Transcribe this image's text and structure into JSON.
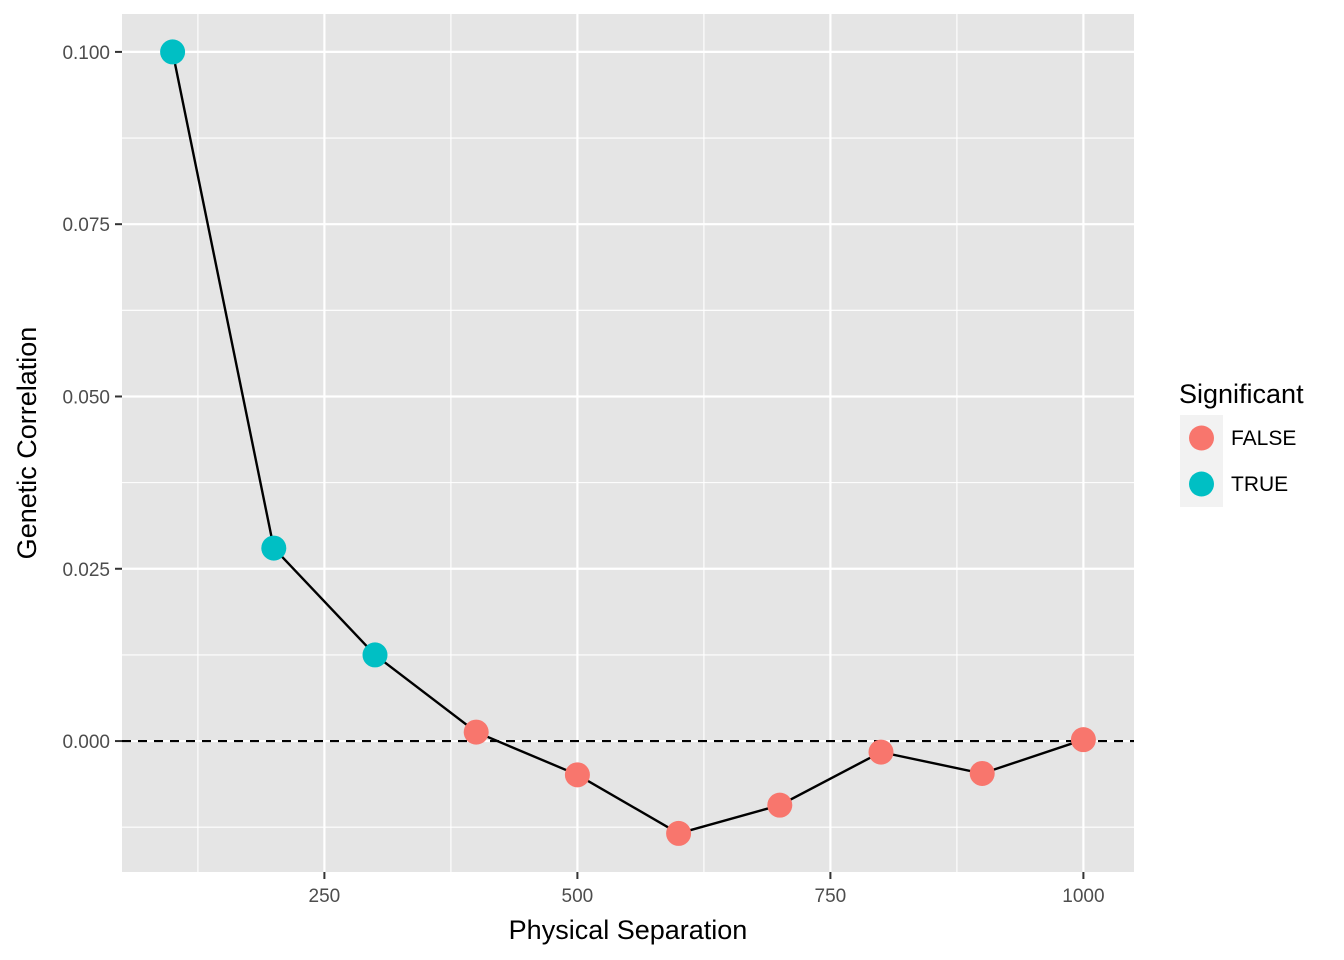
{
  "chart_data": {
    "type": "line",
    "xlabel": "Physical Separation",
    "ylabel": "Genetic Correlation",
    "xlim": [
      50,
      1050
    ],
    "ylim": [
      -0.019,
      0.1055
    ],
    "x_ticks": [
      250,
      500,
      750,
      1000
    ],
    "x_tick_labels": [
      "250",
      "500",
      "750",
      "1000"
    ],
    "y_ticks": [
      0.0,
      0.025,
      0.05,
      0.075,
      0.1
    ],
    "y_tick_labels": [
      "0.000",
      "0.025",
      "0.050",
      "0.075",
      "0.100"
    ],
    "grid": true,
    "reference_line": {
      "y": 0,
      "style": "dashed"
    },
    "legend": {
      "title": "Significant",
      "placement": "right",
      "entries": [
        {
          "label": "FALSE",
          "color": "#F8766D"
        },
        {
          "label": "TRUE",
          "color": "#00BFC4"
        }
      ]
    },
    "points": [
      {
        "x": 100,
        "y": 0.1,
        "significant": "TRUE"
      },
      {
        "x": 200,
        "y": 0.028,
        "significant": "TRUE"
      },
      {
        "x": 300,
        "y": 0.0125,
        "significant": "TRUE"
      },
      {
        "x": 400,
        "y": 0.0013,
        "significant": "FALSE"
      },
      {
        "x": 500,
        "y": -0.0049,
        "significant": "FALSE"
      },
      {
        "x": 600,
        "y": -0.0134,
        "significant": "FALSE"
      },
      {
        "x": 700,
        "y": -0.0093,
        "significant": "FALSE"
      },
      {
        "x": 800,
        "y": -0.0016,
        "significant": "FALSE"
      },
      {
        "x": 900,
        "y": -0.0047,
        "significant": "FALSE"
      },
      {
        "x": 1000,
        "y": 0.0002,
        "significant": "FALSE"
      }
    ],
    "colors": {
      "panel_bg": "#E5E5E5",
      "grid": "#FFFFFF",
      "line": "#000000",
      "false": "#F8766D",
      "true": "#00BFC4"
    }
  }
}
